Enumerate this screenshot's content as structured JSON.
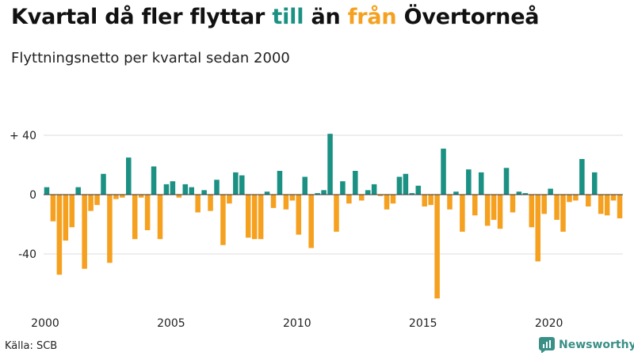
{
  "header": {
    "title_part1": "Kvartal då fler flyttar ",
    "title_till": "till",
    "title_part2": " än ",
    "title_fran": "från",
    "title_part3": " Övertorneå",
    "subtitle": "Flyttningsnetto per kvartal sedan 2000"
  },
  "colors": {
    "positive": "#1a9183",
    "negative": "#f5a01f",
    "title_till": "#1a9183",
    "title_fran": "#f5a01f",
    "grid": "#dddddd",
    "logo": "#3a8f87"
  },
  "footer": {
    "source": "Källa: SCB",
    "brand": "Newsworthy"
  },
  "chart_data": {
    "type": "bar",
    "x_start": "2000 Q1",
    "frequency": "quarterly",
    "ylim": [
      -70,
      44
    ],
    "y_ticks": [
      40,
      0,
      -40
    ],
    "y_tick_labels": [
      "+ 40",
      "0",
      "-40"
    ],
    "x_ticks": [
      2000,
      2005,
      2010,
      2015,
      2020
    ],
    "x_tick_labels": [
      "2000",
      "2005",
      "2010",
      "2015",
      "2020"
    ],
    "grid": true,
    "values": [
      5,
      -18,
      -54,
      -31,
      -22,
      5,
      -50,
      -11,
      -7,
      14,
      -46,
      -3,
      -2,
      25,
      -30,
      -2,
      -24,
      19,
      -30,
      7,
      9,
      -2,
      7,
      5,
      -12,
      3,
      -11,
      10,
      -34,
      -6,
      15,
      13,
      -29,
      -30,
      -30,
      2,
      -9,
      16,
      -10,
      -4,
      -27,
      12,
      -36,
      1,
      3,
      41,
      -25,
      9,
      -6,
      16,
      -4,
      3,
      7,
      -1,
      -10,
      -6,
      12,
      14,
      1,
      6,
      -8,
      -7,
      -70,
      31,
      -10,
      2,
      -25,
      17,
      -14,
      15,
      -21,
      -17,
      -23,
      18,
      -12,
      2,
      1,
      -22,
      -45,
      -13,
      4,
      -17,
      -25,
      -5,
      -4,
      24,
      -8,
      15,
      -13,
      -14,
      -4,
      -16
    ]
  }
}
